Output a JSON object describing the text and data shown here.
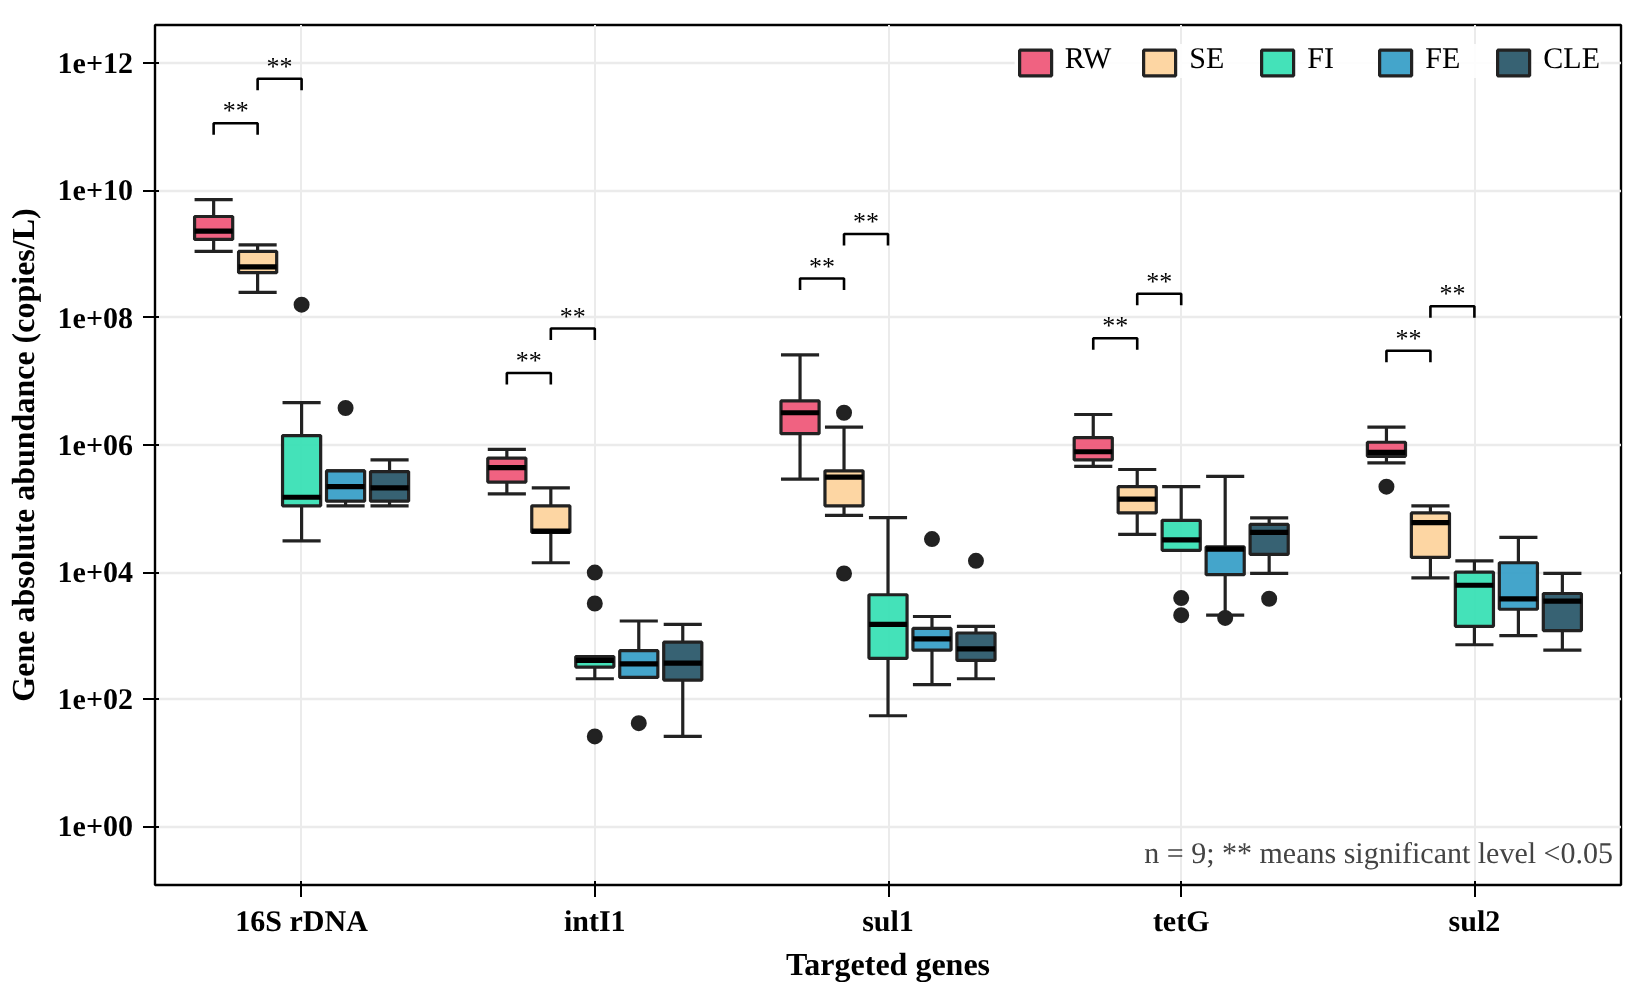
{
  "chart_data": {
    "type": "box",
    "xlabel": "Targeted genes",
    "ylabel": "Gene absolute abundance (copies/L)",
    "categories": [
      "16S rDNA",
      "intI1",
      "sul1",
      "tetG",
      "sul2"
    ],
    "log": true,
    "ylim": [
      0.12,
      4000000000000.0
    ],
    "yticks": [
      {
        "value": 1,
        "label": "1e+00"
      },
      {
        "value": 100,
        "label": "1e+02"
      },
      {
        "value": 10000,
        "label": "1e+04"
      },
      {
        "value": 1000000,
        "label": "1e+06"
      },
      {
        "value": 100000000,
        "label": "1e+08"
      },
      {
        "value": 10000000000,
        "label": "1e+10"
      },
      {
        "value": 1000000000000,
        "label": "1e+12"
      }
    ],
    "grid": true,
    "legend": "top right",
    "series": [
      {
        "name": "RW",
        "color": "#ef5a7a",
        "boxes": [
          {
            "low": 1100000000.0,
            "q1": 1700000000.0,
            "median": 2300000000.0,
            "q3": 3900000000.0,
            "high": 7200000000.0
          },
          {
            "low": 170000.0,
            "q1": 260000.0,
            "median": 440000.0,
            "q3": 620000.0,
            "high": 850000.0
          },
          {
            "low": 290000.0,
            "q1": 1500000.0,
            "median": 3200000.0,
            "q3": 4900000.0,
            "high": 26000000.0
          },
          {
            "low": 460000.0,
            "q1": 580000.0,
            "median": 780000.0,
            "q3": 1300000.0,
            "high": 3000000.0
          },
          {
            "low": 520000.0,
            "q1": 660000.0,
            "median": 760000.0,
            "q3": 1100000.0,
            "high": 1900000.0,
            "outliers": [
              220000.0
            ]
          }
        ]
      },
      {
        "name": "SE",
        "color": "#fdd49e",
        "boxes": [
          {
            "low": 250000000.0,
            "q1": 510000000.0,
            "median": 630000000.0,
            "q3": 1100000000.0,
            "high": 1400000000.0
          },
          {
            "low": 14000.0,
            "q1": 42000.0,
            "median": 44000.0,
            "q3": 110000.0,
            "high": 210000.0
          },
          {
            "low": 78000.0,
            "q1": 110000.0,
            "median": 310000.0,
            "q3": 390000.0,
            "high": 1900000.0,
            "outliers": [
              3200000.0,
              9500
            ]
          },
          {
            "low": 39000.0,
            "q1": 85000.0,
            "median": 140000.0,
            "q3": 220000.0,
            "high": 410000.0
          },
          {
            "low": 8100,
            "q1": 17000.0,
            "median": 60000.0,
            "q3": 85000.0,
            "high": 110000.0
          }
        ]
      },
      {
        "name": "FI",
        "color": "#3ae0b5",
        "boxes": [
          {
            "low": 31000.0,
            "q1": 110000.0,
            "median": 150000.0,
            "q3": 1400000.0,
            "high": 4600000.0,
            "outliers": [
              160000000.0
            ]
          },
          {
            "low": 210,
            "q1": 320,
            "median": 410,
            "q3": 470,
            "high": 470,
            "outliers": [
              9800,
              3200,
              26
            ]
          },
          {
            "low": 55,
            "q1": 440,
            "median": 1500,
            "q3": 4400,
            "high": 72000.0
          },
          {
            "low": 22000.0,
            "q1": 22000.0,
            "median": 32000.0,
            "q3": 65000.0,
            "high": 220000.0,
            "outliers": [
              3900,
              2100
            ]
          },
          {
            "low": 720,
            "q1": 1400,
            "median": 6200,
            "q3": 10000.0,
            "high": 15000.0
          }
        ]
      },
      {
        "name": "FE",
        "color": "#3aa0c8",
        "boxes": [
          {
            "low": 110000.0,
            "q1": 130000.0,
            "median": 220000.0,
            "q3": 390000.0,
            "high": 390000.0,
            "outliers": [
              3800000.0
            ]
          },
          {
            "low": 220,
            "q1": 220,
            "median": 360,
            "q3": 580,
            "high": 1700,
            "outliers": [
              42
            ]
          },
          {
            "low": 170,
            "q1": 590,
            "median": 890,
            "q3": 1300,
            "high": 2000,
            "outliers": [
              33000.0
            ]
          },
          {
            "low": 2100,
            "q1": 9100,
            "median": 23000.0,
            "q3": 25000.0,
            "high": 320000.0,
            "outliers": [
              1900
            ]
          },
          {
            "low": 1000,
            "q1": 2600,
            "median": 3800,
            "q3": 14000.0,
            "high": 35000.0
          }
        ]
      },
      {
        "name": "CLE",
        "color": "#2c5a6b",
        "boxes": [
          {
            "low": 110000.0,
            "q1": 130000.0,
            "median": 210000.0,
            "q3": 380000.0,
            "high": 580000.0
          },
          {
            "low": 26,
            "q1": 200,
            "median": 370,
            "q3": 790,
            "high": 1500
          },
          {
            "low": 210,
            "q1": 410,
            "median": 620,
            "q3": 1100,
            "high": 1400,
            "outliers": [
              15000.0
            ]
          },
          {
            "low": 9500,
            "q1": 19000.0,
            "median": 42000.0,
            "q3": 56000.0,
            "high": 71000.0,
            "outliers": [
              3800
            ]
          },
          {
            "low": 590,
            "q1": 1200,
            "median": 3500,
            "q3": 4600,
            "high": 9500
          }
        ]
      }
    ],
    "annotations": [
      "**",
      "**",
      "**",
      "**",
      "**",
      "**",
      "**",
      "**",
      "**",
      "**",
      "n = 9; ** means significant level <0.05"
    ]
  }
}
